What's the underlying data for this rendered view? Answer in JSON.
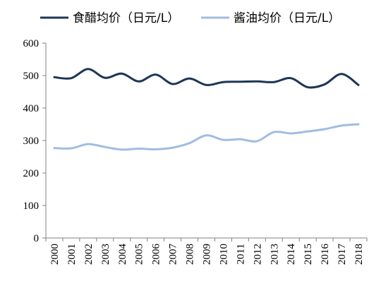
{
  "chart_data": {
    "type": "line",
    "title": "",
    "xlabel": "",
    "ylabel": "",
    "ylim": [
      0,
      600
    ],
    "yticks": [
      "0",
      "100",
      "200",
      "300",
      "400",
      "500",
      "600"
    ],
    "grid": false,
    "legend_position": "top",
    "categories": [
      "2000",
      "2001",
      "2002",
      "2003",
      "2004",
      "2005",
      "2006",
      "2007",
      "2008",
      "2009",
      "2010",
      "2011",
      "2012",
      "2013",
      "2014",
      "2015",
      "2016",
      "2017",
      "2018"
    ],
    "series": [
      {
        "name": "食醋均价（日元/L）",
        "color": "#1f3655",
        "values": [
          495,
          492,
          520,
          493,
          506,
          482,
          503,
          474,
          491,
          471,
          480,
          481,
          482,
          480,
          492,
          464,
          473,
          505,
          471
        ]
      },
      {
        "name": "酱油均价（日元/L）",
        "color": "#9fbde0",
        "values": [
          277,
          276,
          289,
          280,
          272,
          275,
          273,
          278,
          292,
          316,
          302,
          304,
          298,
          326,
          322,
          328,
          335,
          346,
          350
        ]
      }
    ]
  }
}
